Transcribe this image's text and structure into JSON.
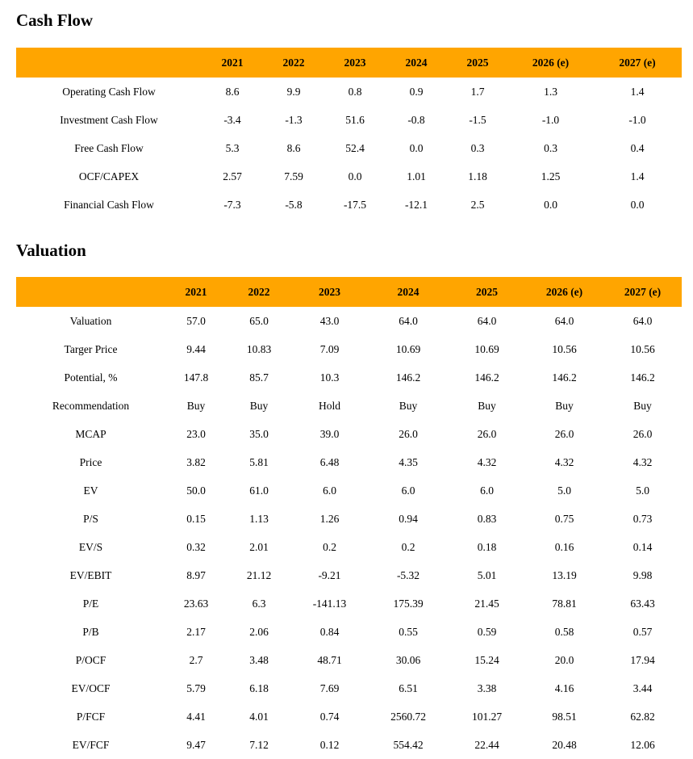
{
  "theme": {
    "accent": "#FFA500",
    "text_color": "#000000",
    "background": "#ffffff"
  },
  "sections": [
    {
      "title": "Cash Flow",
      "columns": [
        "",
        "2021",
        "2022",
        "2023",
        "2024",
        "2025",
        "2026 (e)",
        "2027 (e)"
      ],
      "rows": [
        {
          "label": "Operating Cash Flow",
          "values": [
            "8.6",
            "9.9",
            "0.8",
            "0.9",
            "1.7",
            "1.3",
            "1.4"
          ]
        },
        {
          "label": "Investment Cash Flow",
          "values": [
            "-3.4",
            "-1.3",
            "51.6",
            "-0.8",
            "-1.5",
            "-1.0",
            "-1.0"
          ]
        },
        {
          "label": "Free Cash Flow",
          "values": [
            "5.3",
            "8.6",
            "52.4",
            "0.0",
            "0.3",
            "0.3",
            "0.4"
          ]
        },
        {
          "label": "OCF/CAPEX",
          "values": [
            "2.57",
            "7.59",
            "0.0",
            "1.01",
            "1.18",
            "1.25",
            "1.4"
          ]
        },
        {
          "label": "Financial Cash Flow",
          "values": [
            "-7.3",
            "-5.8",
            "-17.5",
            "-12.1",
            "2.5",
            "0.0",
            "0.0"
          ]
        }
      ]
    },
    {
      "title": "Valuation",
      "columns": [
        "",
        "2021",
        "2022",
        "2023",
        "2024",
        "2025",
        "2026 (e)",
        "2027 (e)"
      ],
      "rows": [
        {
          "label": "Valuation",
          "values": [
            "57.0",
            "65.0",
            "43.0",
            "64.0",
            "64.0",
            "64.0",
            "64.0"
          ]
        },
        {
          "label": "Targer Price",
          "values": [
            "9.44",
            "10.83",
            "7.09",
            "10.69",
            "10.69",
            "10.56",
            "10.56"
          ]
        },
        {
          "label": "Potential, %",
          "values": [
            "147.8",
            "85.7",
            "10.3",
            "146.2",
            "146.2",
            "146.2",
            "146.2"
          ]
        },
        {
          "label": "Recommendation",
          "values": [
            "Buy",
            "Buy",
            "Hold",
            "Buy",
            "Buy",
            "Buy",
            "Buy"
          ]
        },
        {
          "label": "MCAP",
          "values": [
            "23.0",
            "35.0",
            "39.0",
            "26.0",
            "26.0",
            "26.0",
            "26.0"
          ]
        },
        {
          "label": "Price",
          "values": [
            "3.82",
            "5.81",
            "6.48",
            "4.35",
            "4.32",
            "4.32",
            "4.32"
          ]
        },
        {
          "label": "EV",
          "values": [
            "50.0",
            "61.0",
            "6.0",
            "6.0",
            "6.0",
            "5.0",
            "5.0"
          ]
        },
        {
          "label": "P/S",
          "values": [
            "0.15",
            "1.13",
            "1.26",
            "0.94",
            "0.83",
            "0.75",
            "0.73"
          ]
        },
        {
          "label": "EV/S",
          "values": [
            "0.32",
            "2.01",
            "0.2",
            "0.2",
            "0.18",
            "0.16",
            "0.14"
          ]
        },
        {
          "label": "EV/EBIT",
          "values": [
            "8.97",
            "21.12",
            "-9.21",
            "-5.32",
            "5.01",
            "13.19",
            "9.98"
          ]
        },
        {
          "label": "P/E",
          "values": [
            "23.63",
            "6.3",
            "-141.13",
            "175.39",
            "21.45",
            "78.81",
            "63.43"
          ]
        },
        {
          "label": "P/B",
          "values": [
            "2.17",
            "2.06",
            "0.84",
            "0.55",
            "0.59",
            "0.58",
            "0.57"
          ]
        },
        {
          "label": "P/OCF",
          "values": [
            "2.7",
            "3.48",
            "48.71",
            "30.06",
            "15.24",
            "20.0",
            "17.94"
          ]
        },
        {
          "label": "EV/OCF",
          "values": [
            "5.79",
            "6.18",
            "7.69",
            "6.51",
            "3.38",
            "4.16",
            "3.44"
          ]
        },
        {
          "label": "P/FCF",
          "values": [
            "4.41",
            "4.01",
            "0.74",
            "2560.72",
            "101.27",
            "98.51",
            "62.82"
          ]
        },
        {
          "label": "EV/FCF",
          "values": [
            "9.47",
            "7.12",
            "0.12",
            "554.42",
            "22.44",
            "20.48",
            "12.06"
          ]
        }
      ]
    }
  ]
}
